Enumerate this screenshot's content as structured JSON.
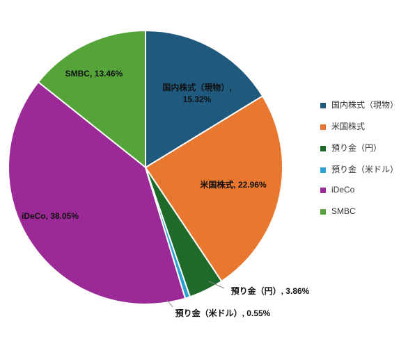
{
  "chart_data": {
    "type": "pie",
    "categories": [
      "国内株式（現物）",
      "米国株式",
      "預り金（円）",
      "預り金（米ドル）",
      "iDeCo",
      "SMBC"
    ],
    "values": [
      15.32,
      22.96,
      3.86,
      0.55,
      38.05,
      13.46
    ],
    "value_labels": [
      "国内株式（現物）, 15.32%",
      "米国株式, 22.96%",
      "預り金（円）, 3.86%",
      "預り金（米ドル）, 0.55%",
      "iDeCo, 38.05%",
      "SMBC, 13.46%"
    ],
    "colors": [
      "#1f5a7e",
      "#e8772f",
      "#1d6a2b",
      "#2aa0d2",
      "#9b2a96",
      "#54a43a"
    ],
    "legend": "right"
  }
}
